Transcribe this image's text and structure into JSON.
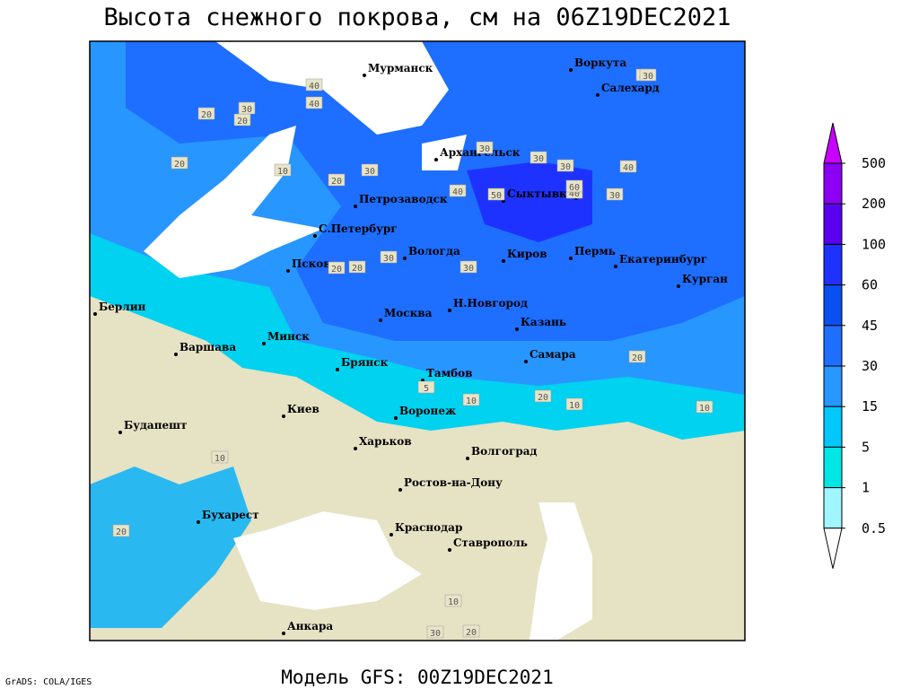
{
  "title": "Высота снежного покрова, см на 06Z19DEC2021",
  "footer": "Модель GFS: 00Z19DEC2021",
  "credit": "GrADS: COLA/IGES",
  "legend": {
    "levels": [
      0.5,
      1,
      5,
      15,
      30,
      45,
      60,
      100,
      200,
      500
    ],
    "colors": [
      "#ffffff",
      "#a0f5ff",
      "#00e6e6",
      "#00c8ff",
      "#2896ff",
      "#1e6eff",
      "#0a50f0",
      "#1e32ff",
      "#5a00f0",
      "#8c00f5",
      "#c800ff"
    ]
  },
  "cities": [
    "Мурманск",
    "Воркута",
    "Салехард",
    "Архангельск",
    "Петрозаводск",
    "Сыктывкар",
    "С.Петербург",
    "Вологда",
    "Киров",
    "Пермь",
    "Екатеринбург",
    "Курган",
    "Псков",
    "Берлин",
    "Москва",
    "Н.Новгород",
    "Казань",
    "Минск",
    "Варшава",
    "Брянск",
    "Тамбов",
    "Самара",
    "Киев",
    "Воронеж",
    "Будапешт",
    "Харьков",
    "Волгоград",
    "Ростов-на-Дону",
    "Бухарест",
    "Краснодар",
    "Ставрополь",
    "Анкара"
  ],
  "contour_labels": [
    40,
    40,
    40,
    30,
    20,
    20,
    30,
    10,
    40,
    30,
    30,
    40,
    50,
    60,
    30,
    40,
    30,
    20,
    30,
    30,
    30,
    20,
    20,
    20,
    10,
    10,
    10,
    5,
    20,
    10,
    20,
    30,
    20,
    10,
    20
  ]
}
